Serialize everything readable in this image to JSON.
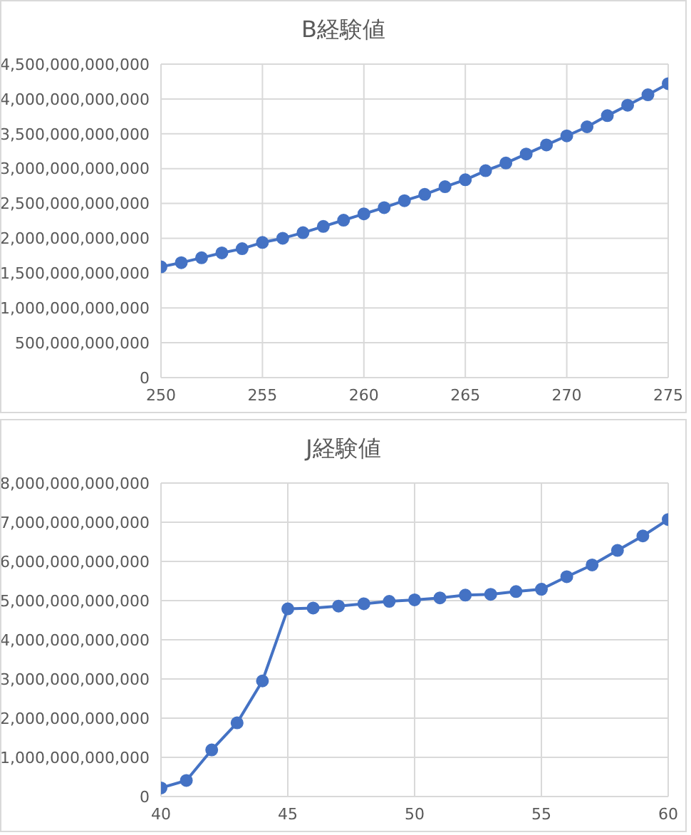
{
  "chart_data": [
    {
      "type": "line",
      "title": "B経験値",
      "x": [
        250,
        251,
        252,
        253,
        254,
        255,
        256,
        257,
        258,
        259,
        260,
        261,
        262,
        263,
        264,
        265,
        266,
        267,
        268,
        269,
        270,
        271,
        272,
        273,
        274,
        275
      ],
      "series": [
        {
          "color": "#4472c4",
          "values": [
            1590000000000,
            1650000000000,
            1720000000000,
            1790000000000,
            1850000000000,
            1940000000000,
            2000000000000,
            2080000000000,
            2170000000000,
            2260000000000,
            2350000000000,
            2440000000000,
            2540000000000,
            2630000000000,
            2740000000000,
            2840000000000,
            2970000000000,
            3080000000000,
            3210000000000,
            3340000000000,
            3470000000000,
            3600000000000,
            3760000000000,
            3910000000000,
            4060000000000,
            4220000000000
          ]
        }
      ],
      "xlim": [
        250,
        275
      ],
      "xticks": [
        250,
        255,
        260,
        265,
        270,
        275
      ],
      "ylim": [
        0,
        4500000000000
      ],
      "yticks": [
        {
          "value": 0,
          "label": "0"
        },
        {
          "value": 500000000000,
          "label": "500,000,000,000"
        },
        {
          "value": 1000000000000,
          "label": "1,000,000,000,000"
        },
        {
          "value": 1500000000000,
          "label": "1,500,000,000,000"
        },
        {
          "value": 2000000000000,
          "label": "2,000,000,000,000"
        },
        {
          "value": 2500000000000,
          "label": "2,500,000,000,000"
        },
        {
          "value": 3000000000000,
          "label": "3,000,000,000,000"
        },
        {
          "value": 3500000000000,
          "label": "3,500,000,000,000"
        },
        {
          "value": 4000000000000,
          "label": "4,000,000,000,000"
        },
        {
          "value": 4500000000000,
          "label": "4,500,000,000,000"
        }
      ],
      "grid": true,
      "marker": "circle",
      "line_style": "solid"
    },
    {
      "type": "line",
      "title": "J経験値",
      "x": [
        40,
        41,
        42,
        43,
        44,
        45,
        46,
        47,
        48,
        49,
        50,
        51,
        52,
        53,
        54,
        55,
        56,
        57,
        58,
        59,
        60
      ],
      "series": [
        {
          "color": "#4472c4",
          "values": [
            220000000000,
            410000000000,
            1190000000000,
            1880000000000,
            2950000000000,
            4790000000000,
            4810000000000,
            4860000000000,
            4920000000000,
            4980000000000,
            5020000000000,
            5070000000000,
            5140000000000,
            5160000000000,
            5230000000000,
            5290000000000,
            5610000000000,
            5910000000000,
            6280000000000,
            6650000000000,
            7070000000000
          ]
        }
      ],
      "xlim": [
        40,
        60
      ],
      "xticks": [
        40,
        45,
        50,
        55,
        60
      ],
      "ylim": [
        0,
        8000000000000
      ],
      "yticks": [
        {
          "value": 0,
          "label": "0"
        },
        {
          "value": 1000000000000,
          "label": "1,000,000,000,000"
        },
        {
          "value": 2000000000000,
          "label": "2,000,000,000,000"
        },
        {
          "value": 3000000000000,
          "label": "3,000,000,000,000"
        },
        {
          "value": 4000000000000,
          "label": "4,000,000,000,000"
        },
        {
          "value": 5000000000000,
          "label": "5,000,000,000,000"
        },
        {
          "value": 6000000000000,
          "label": "6,000,000,000,000"
        },
        {
          "value": 7000000000000,
          "label": "7,000,000,000,000"
        },
        {
          "value": 8000000000000,
          "label": "8,000,000,000,000"
        }
      ],
      "grid": true,
      "marker": "circle",
      "line_style": "solid"
    }
  ]
}
